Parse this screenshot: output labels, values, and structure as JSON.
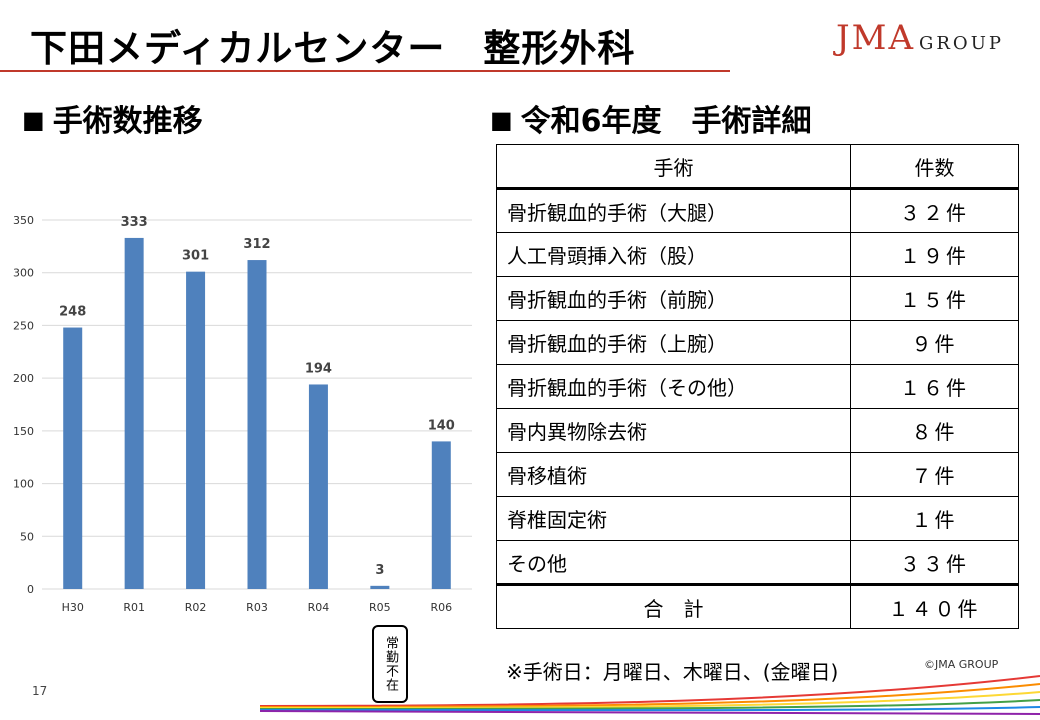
{
  "header": {
    "title": "下田メディカルセンター　整形外科",
    "logo_main": "JMA",
    "logo_sub": "GROUP"
  },
  "chart_section": {
    "heading": "手術数推移"
  },
  "table_section": {
    "heading": "令和6年度　手術詳細",
    "columns": [
      "手術",
      "件数"
    ],
    "rows": [
      {
        "name": "骨折観血的手術（大腿）",
        "count": "３２件"
      },
      {
        "name": "人工骨頭挿入術（股）",
        "count": "１９件"
      },
      {
        "name": "骨折観血的手術（前腕）",
        "count": "１５件"
      },
      {
        "name": "骨折観血的手術（上腕）",
        "count": "９件"
      },
      {
        "name": "骨折観血的手術（その他）",
        "count": "１６件"
      },
      {
        "name": "骨内異物除去術",
        "count": "８件"
      },
      {
        "name": "骨移植術",
        "count": "７件"
      },
      {
        "name": "脊椎固定術",
        "count": "１件"
      },
      {
        "name": "その他",
        "count": "３３件"
      }
    ],
    "total_label": "合　計",
    "total_count": "１４０件"
  },
  "chart_data": {
    "type": "bar",
    "categories": [
      "H30",
      "R01",
      "R02",
      "R03",
      "R04",
      "R05",
      "R06"
    ],
    "values": [
      248,
      333,
      301,
      312,
      194,
      3,
      140
    ],
    "ylim": [
      0,
      350
    ],
    "yticks": [
      0,
      50,
      100,
      150,
      200,
      250,
      300,
      350
    ],
    "grid": true,
    "bar_color": "#4f81bd",
    "grid_color": "#d9d9d9"
  },
  "annotation": {
    "absent_label": "常勤不在"
  },
  "note": "※手術日：月曜日、木曜日、(金曜日)",
  "copyright": "©JMA GROUP",
  "page_number": "17",
  "colors": {
    "accent": "#c0392b"
  }
}
